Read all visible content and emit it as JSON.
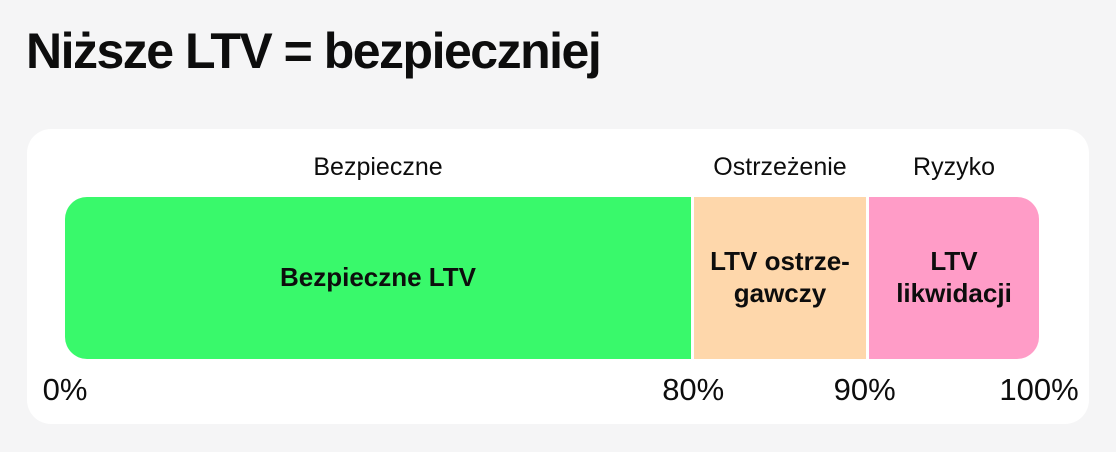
{
  "page": {
    "title": "Niższe LTV = bezpieczniej",
    "background_color": "#f5f5f6",
    "card_color": "#ffffff",
    "text_color": "#0d0d0d"
  },
  "chart_data": {
    "type": "bar",
    "orientation": "horizontal-segmented",
    "title": "Niższe LTV = bezpieczniej",
    "unit": "%",
    "axis_range": [
      0,
      100
    ],
    "axis_ticks": [
      "0%",
      "80%",
      "90%",
      "100%"
    ],
    "grid": false,
    "legend_position": "labels-above-segments",
    "segments": [
      {
        "zone_label": "Bezpieczne",
        "bar_label": "Bezpieczne LTV",
        "from": 0,
        "to": 80,
        "color": "#39f96b"
      },
      {
        "zone_label": "Ostrzeżenie",
        "bar_label": "LTV ostrze-\ngawczy",
        "from": 80,
        "to": 90,
        "color": "#fed7ab"
      },
      {
        "zone_label": "Ryzyko",
        "bar_label": "LTV\nlikwidacji",
        "from": 90,
        "to": 100,
        "color": "#ff9cc7"
      }
    ],
    "ticks": [
      {
        "label": "0%",
        "value": 0
      },
      {
        "label": "80%",
        "value": 80
      },
      {
        "label": "90%",
        "value": 90
      },
      {
        "label": "100%",
        "value": 100
      }
    ]
  }
}
